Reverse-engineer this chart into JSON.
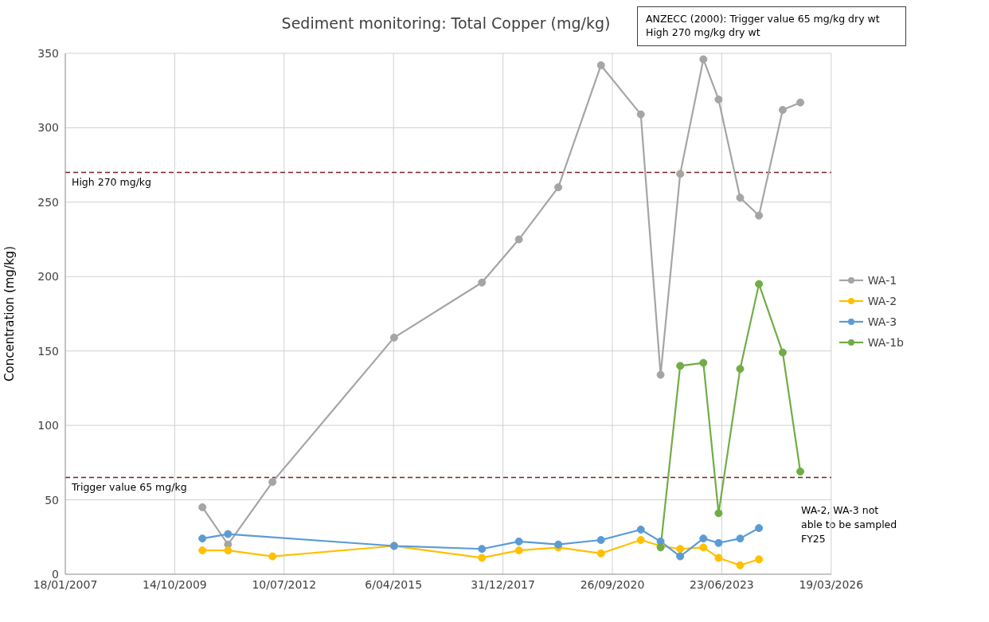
{
  "chart_data": {
    "type": "line",
    "title": "Sediment monitoring: Total Copper (mg/kg)",
    "ylabel": "Concentration (mg/kg)",
    "annotations": [
      "ANZECC (2000): Trigger value 65 mg/kg dry wt\nHigh 270 mg/kg dry wt",
      "WA-2, WA-3 not able to be sampled FY25"
    ],
    "xlim": [
      "2007-01-18",
      "2026-03-19"
    ],
    "xticks": [
      {
        "value": "2007-01-18",
        "label": "18/01/2007"
      },
      {
        "value": "2009-10-14",
        "label": "14/10/2009"
      },
      {
        "value": "2012-07-10",
        "label": "10/07/2012"
      },
      {
        "value": "2015-04-06",
        "label": "6/04/2015"
      },
      {
        "value": "2017-12-31",
        "label": "31/12/2017"
      },
      {
        "value": "2020-09-26",
        "label": "26/09/2020"
      },
      {
        "value": "2023-06-23",
        "label": "23/06/2023"
      },
      {
        "value": "2026-03-19",
        "label": "19/03/2026"
      }
    ],
    "ylim": [
      0,
      350
    ],
    "yticks": [
      0,
      50,
      100,
      150,
      200,
      250,
      300,
      350
    ],
    "grid": true,
    "legend": "right",
    "marker": "circle",
    "line_style": "solid",
    "ref_lines": [
      {
        "axis": "y",
        "value": 270,
        "label": "High 270 mg/kg",
        "color": "#7b2020",
        "line_style": "dashed"
      },
      {
        "axis": "y",
        "value": 65,
        "label": "Trigger value 65 mg/kg",
        "color": "#7b2020",
        "line_style": "dashed"
      }
    ],
    "series": [
      {
        "name": "WA-1",
        "color": "#a5a5a5",
        "x": [
          "2010-06-24",
          "2011-02-13",
          "2012-03-26",
          "2015-04-11",
          "2017-06-22",
          "2018-05-26",
          "2019-05-21",
          "2020-06-14",
          "2021-06-13",
          "2021-12-11",
          "2022-06-08",
          "2023-01-06",
          "2023-05-25",
          "2023-12-08",
          "2024-05-28",
          "2024-12-31",
          "2025-06-10"
        ],
        "values": [
          45,
          20,
          62,
          159,
          196,
          225,
          260,
          342,
          309,
          134,
          269,
          346,
          319,
          253,
          241,
          312,
          317
        ]
      },
      {
        "name": "WA-2",
        "color": "#ffc000",
        "x": [
          "2010-06-24",
          "2011-02-13",
          "2012-03-26",
          "2015-04-11",
          "2017-06-22",
          "2018-05-26",
          "2019-05-21",
          "2020-06-14",
          "2021-06-13",
          "2021-12-11",
          "2022-06-08",
          "2023-01-06",
          "2023-05-25",
          "2023-12-08",
          "2024-05-28"
        ],
        "values": [
          16,
          16,
          12,
          19,
          11,
          16,
          18,
          14,
          23,
          19,
          17,
          18,
          11,
          6,
          10
        ]
      },
      {
        "name": "WA-3",
        "color": "#5b9bd5",
        "x": [
          "2010-06-24",
          "2011-02-13",
          "2015-04-11",
          "2017-06-22",
          "2018-05-26",
          "2019-05-21",
          "2020-06-14",
          "2021-06-13",
          "2021-12-11",
          "2022-06-08",
          "2023-01-06",
          "2023-05-25",
          "2023-12-08",
          "2024-05-28"
        ],
        "values": [
          24,
          27,
          19,
          17,
          22,
          20,
          23,
          30,
          22,
          12,
          24,
          21,
          24,
          31
        ]
      },
      {
        "name": "WA-1b",
        "color": "#70ad47",
        "x": [
          "2021-12-11",
          "2022-06-08",
          "2023-01-06",
          "2023-05-25",
          "2023-12-08",
          "2024-05-28",
          "2024-12-31",
          "2025-06-10"
        ],
        "values": [
          18,
          140,
          142,
          41,
          138,
          195,
          149,
          69
        ]
      }
    ]
  }
}
